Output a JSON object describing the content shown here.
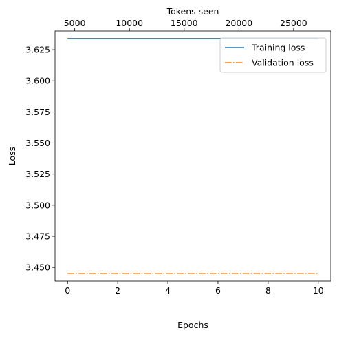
{
  "chart_data": {
    "type": "line",
    "xlabel": "Epochs",
    "ylabel": "Loss",
    "xlabel_top": "Tokens seen",
    "xlim": [
      -0.5,
      10.5
    ],
    "ylim": [
      3.439,
      3.64
    ],
    "xticks": [
      0,
      2,
      4,
      6,
      8,
      10
    ],
    "xtick_labels": [
      "0",
      "2",
      "4",
      "6",
      "8",
      "10"
    ],
    "yticks": [
      3.45,
      3.475,
      3.5,
      3.525,
      3.55,
      3.575,
      3.6,
      3.625
    ],
    "ytick_labels": [
      "3.450",
      "3.475",
      "3.500",
      "3.525",
      "3.550",
      "3.575",
      "3.600",
      "3.625"
    ],
    "top_axis": {
      "xlim": [
        3200,
        28400
      ],
      "ticks": [
        5000,
        10000,
        15000,
        20000,
        25000
      ],
      "tick_labels": [
        "5000",
        "10000",
        "15000",
        "20000",
        "25000"
      ]
    },
    "legend_position": "top-right",
    "grid": false,
    "series": [
      {
        "name": "Training loss",
        "color": "#1f77b4",
        "style": "solid",
        "x": [
          0,
          10
        ],
        "y": [
          3.634,
          3.634
        ]
      },
      {
        "name": "Validation loss",
        "color": "#ff7f0e",
        "style": "dashdot",
        "x": [
          0,
          10
        ],
        "y": [
          3.445,
          3.445
        ]
      }
    ]
  }
}
